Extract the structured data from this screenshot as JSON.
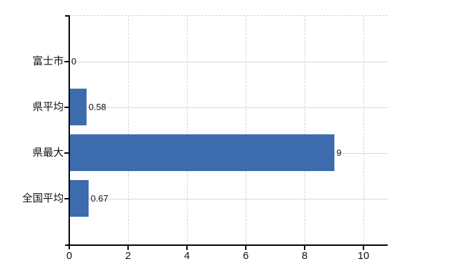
{
  "chart_data": {
    "type": "bar",
    "orientation": "horizontal",
    "title": "",
    "categories": [
      "富士市",
      "県平均",
      "県最大",
      "全国平均"
    ],
    "values": [
      0,
      0.58,
      9,
      0.67
    ],
    "value_labels": [
      "0",
      "0.58",
      "9",
      "0.67"
    ],
    "xticks": [
      0,
      2,
      4,
      6,
      8,
      10
    ],
    "xtick_labels": [
      "0",
      "2",
      "4",
      "6",
      "8",
      "10"
    ],
    "xlim": [
      0,
      10.82
    ],
    "grid": {
      "horizontal_lines": "solid, one per category center",
      "vertical_lines": "dashed, at ticks 2-10",
      "top_border": "dashed"
    },
    "legend": "none",
    "colors": {
      "bar": "#3c6cae",
      "grid_solid": "#d3d8d3",
      "grid_dashed": "#d5d3d6",
      "axis": "#000000",
      "text": "#111111",
      "background": "#ffffff"
    }
  }
}
